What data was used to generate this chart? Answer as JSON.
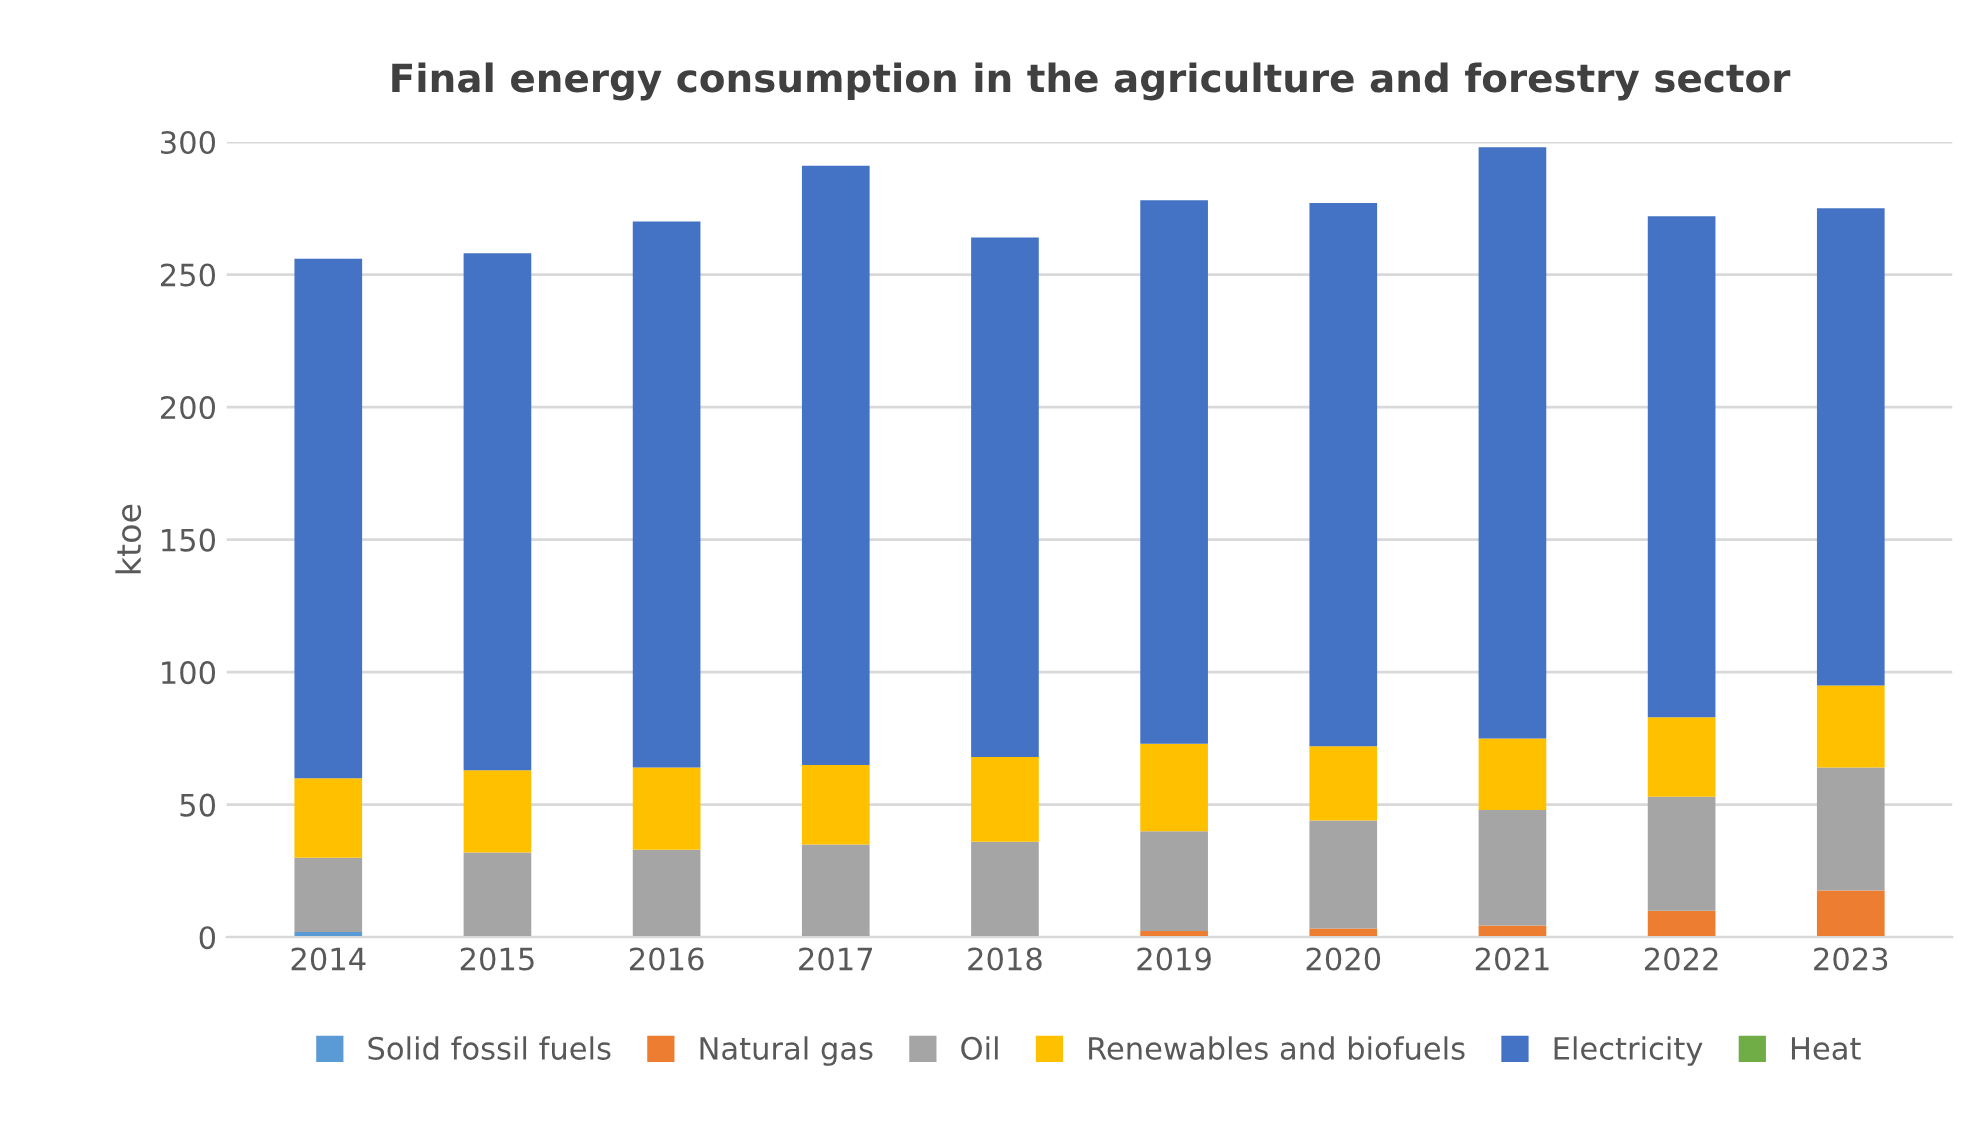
{
  "chart_data": {
    "type": "bar",
    "stacked": true,
    "title": "Final energy consumption in the agriculture and forestry sector",
    "ylabel": "ktoe",
    "categories": [
      "2014",
      "2015",
      "2016",
      "2017",
      "2018",
      "2019",
      "2020",
      "2021",
      "2022",
      "2023"
    ],
    "series": [
      {
        "name": "Solid fossil fuels",
        "color": "#5b9bd5",
        "values": [
          2,
          0,
          0,
          0,
          0,
          0,
          0,
          0,
          0,
          0
        ]
      },
      {
        "name": "Natural gas",
        "color": "#ed7d31",
        "values": [
          0,
          0,
          0,
          0,
          null,
          2.3,
          3.3,
          4.4,
          10,
          17.6
        ]
      },
      {
        "name": "Oil",
        "color": "#a5a5a5",
        "values": [
          28,
          32,
          33,
          35,
          36,
          37.7,
          40.7,
          43.6,
          43,
          46.4
        ]
      },
      {
        "name": "Renewables and biofuels",
        "color": "#ffc000",
        "values": [
          30,
          31,
          31,
          30,
          32,
          33,
          28,
          27,
          30,
          31
        ]
      },
      {
        "name": "Electricity",
        "color": "#4472c4",
        "values": [
          196,
          195,
          206,
          226,
          196,
          205,
          205,
          223,
          189,
          180
        ]
      },
      {
        "name": "Heat",
        "color": "#70ad47",
        "values": [
          0,
          0,
          0,
          0,
          0,
          0,
          0,
          0,
          0,
          0
        ]
      }
    ],
    "ylim": [
      0,
      300
    ],
    "yticks": [
      0,
      50,
      100,
      150,
      200,
      250,
      300
    ],
    "grid": "y",
    "legend": "bottom"
  }
}
